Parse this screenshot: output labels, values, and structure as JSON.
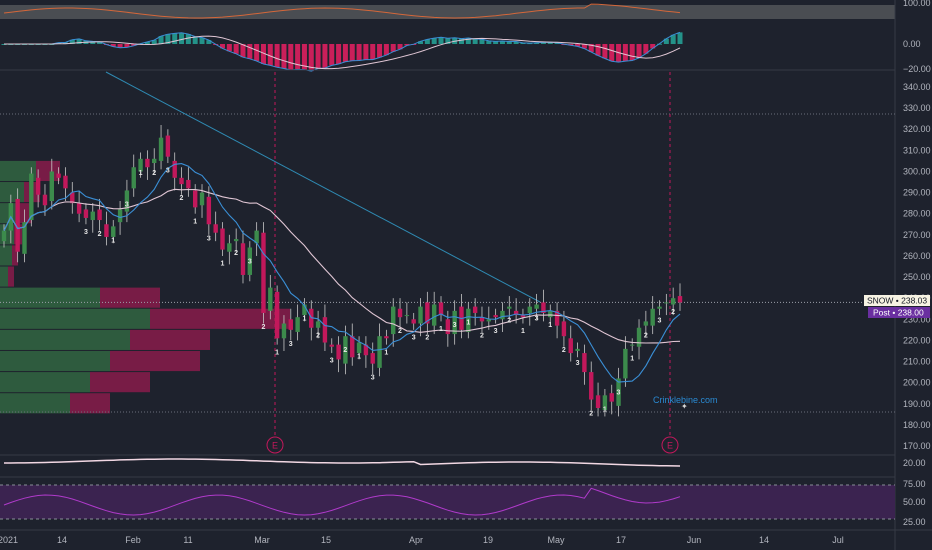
{
  "chart_data": {
    "type": "candlestick",
    "ticker_label": "SNOW",
    "ticker_value": "238.03",
    "post_label": "Post",
    "post_value": "238.00",
    "watermark": "Crinklebine.com",
    "earnings_marker": "E",
    "price_axis": {
      "range": [
        175,
        345
      ],
      "ticks": [
        "340.00",
        "330.00",
        "320.00",
        "310.00",
        "300.00",
        "290.00",
        "280.00",
        "270.00",
        "260.00",
        "250.00",
        "240.00",
        "230.00",
        "220.00",
        "210.00",
        "200.00",
        "190.00",
        "180.00",
        "170.00"
      ]
    },
    "osc_top_ticks": [
      "100.00"
    ],
    "macd_ticks": [
      "0.00",
      "−20.00"
    ],
    "volume_pane_ticks": [
      "20.00"
    ],
    "rsi_ticks": [
      "75.00",
      "50.00",
      "25.00"
    ],
    "x_labels": [
      "2021",
      "14",
      "Feb",
      "11",
      "Mar",
      "15",
      "Apr",
      "19",
      "May",
      "17",
      "Jun",
      "14",
      "Jul"
    ],
    "x_label_dates": [
      "2021-01-04",
      "2021-01-14",
      "2021-02-01",
      "2021-02-11",
      "2021-03-01",
      "2021-03-15",
      "2021-04-01",
      "2021-04-19",
      "2021-05-03",
      "2021-05-17",
      "2021-06-01",
      "2021-06-14",
      "2021-07-01"
    ],
    "closes": [
      272,
      285,
      262,
      276,
      299,
      289,
      284,
      300,
      297,
      292,
      285,
      280,
      278,
      281,
      277,
      269,
      274,
      282,
      291,
      302,
      306,
      302,
      306,
      316,
      307,
      297,
      294,
      292,
      283,
      290,
      275,
      271,
      263,
      266,
      268,
      251,
      264,
      272,
      233,
      245,
      221,
      228,
      225,
      231,
      237,
      226,
      229,
      219,
      217,
      211,
      222,
      212,
      219,
      213,
      209,
      222,
      221,
      236,
      231,
      232,
      228,
      236,
      228,
      237,
      232,
      223,
      234,
      225,
      235,
      233,
      229,
      230,
      231,
      234,
      236,
      232,
      231,
      236,
      237,
      233,
      234,
      227,
      222,
      214,
      216,
      205,
      192,
      188,
      194,
      191,
      202,
      216,
      218,
      226,
      229,
      235,
      236,
      238,
      240,
      238
    ],
    "volume_profile": [
      {
        "price": 300,
        "green": 0.18,
        "red": 0.12
      },
      {
        "price": 290,
        "green": 0.12,
        "red": 0.08
      },
      {
        "price": 280,
        "green": 0.1,
        "red": 0.06
      },
      {
        "price": 270,
        "green": 0.07,
        "red": 0.04
      },
      {
        "price": 260,
        "green": 0.06,
        "red": 0.03
      },
      {
        "price": 250,
        "green": 0.04,
        "red": 0.03
      },
      {
        "price": 240,
        "green": 0.5,
        "red": 0.3
      },
      {
        "price": 230,
        "green": 0.75,
        "red": 0.7
      },
      {
        "price": 220,
        "green": 0.65,
        "red": 0.4
      },
      {
        "price": 210,
        "green": 0.55,
        "red": 0.45
      },
      {
        "price": 200,
        "green": 0.45,
        "red": 0.3
      },
      {
        "price": 190,
        "green": 0.35,
        "red": 0.2
      }
    ],
    "grid": false,
    "legend": "none"
  },
  "colors": {
    "background": "#1e222d",
    "up": "#3c8b4c",
    "down": "#c2185b",
    "ma_fast": "#3a8fd6",
    "ma_slow": "#e0c6d4",
    "ticker_tag_bg": "#f7f3e3",
    "post_tag_bg": "#6a2fa0",
    "rsi_fill": "#3b2350",
    "rsi_line": "#b03acb"
  }
}
